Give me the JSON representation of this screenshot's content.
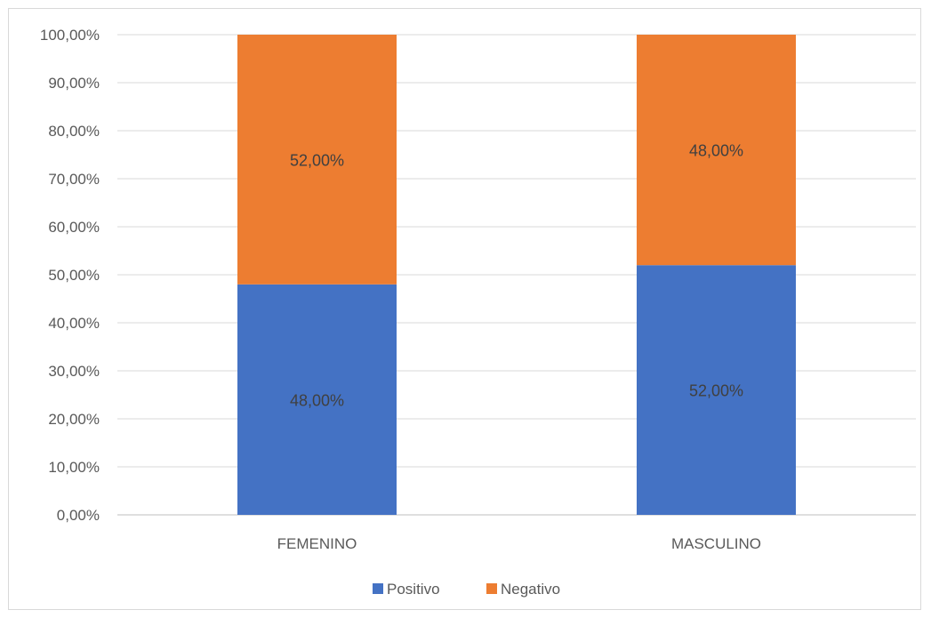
{
  "chart_data": {
    "type": "bar",
    "stacked": true,
    "title": "",
    "xlabel": "",
    "ylabel": "",
    "categories": [
      "FEMENINO",
      "MASCULINO"
    ],
    "series": [
      {
        "name": "Positivo",
        "values": [
          48,
          52
        ],
        "labels": [
          "48,00%",
          "52,00%"
        ],
        "color": "#4472c4"
      },
      {
        "name": "Negativo",
        "values": [
          52,
          48
        ],
        "labels": [
          "52,00%",
          "48,00%"
        ],
        "color": "#ed7d31"
      }
    ],
    "ylim": [
      0,
      100
    ],
    "yticks": [
      0,
      10,
      20,
      30,
      40,
      50,
      60,
      70,
      80,
      90,
      100
    ],
    "ytick_labels": [
      "0,00%",
      "10,00%",
      "20,00%",
      "30,00%",
      "40,00%",
      "50,00%",
      "60,00%",
      "70,00%",
      "80,00%",
      "90,00%",
      "100,00%"
    ],
    "grid": true,
    "legend_position": "bottom"
  }
}
